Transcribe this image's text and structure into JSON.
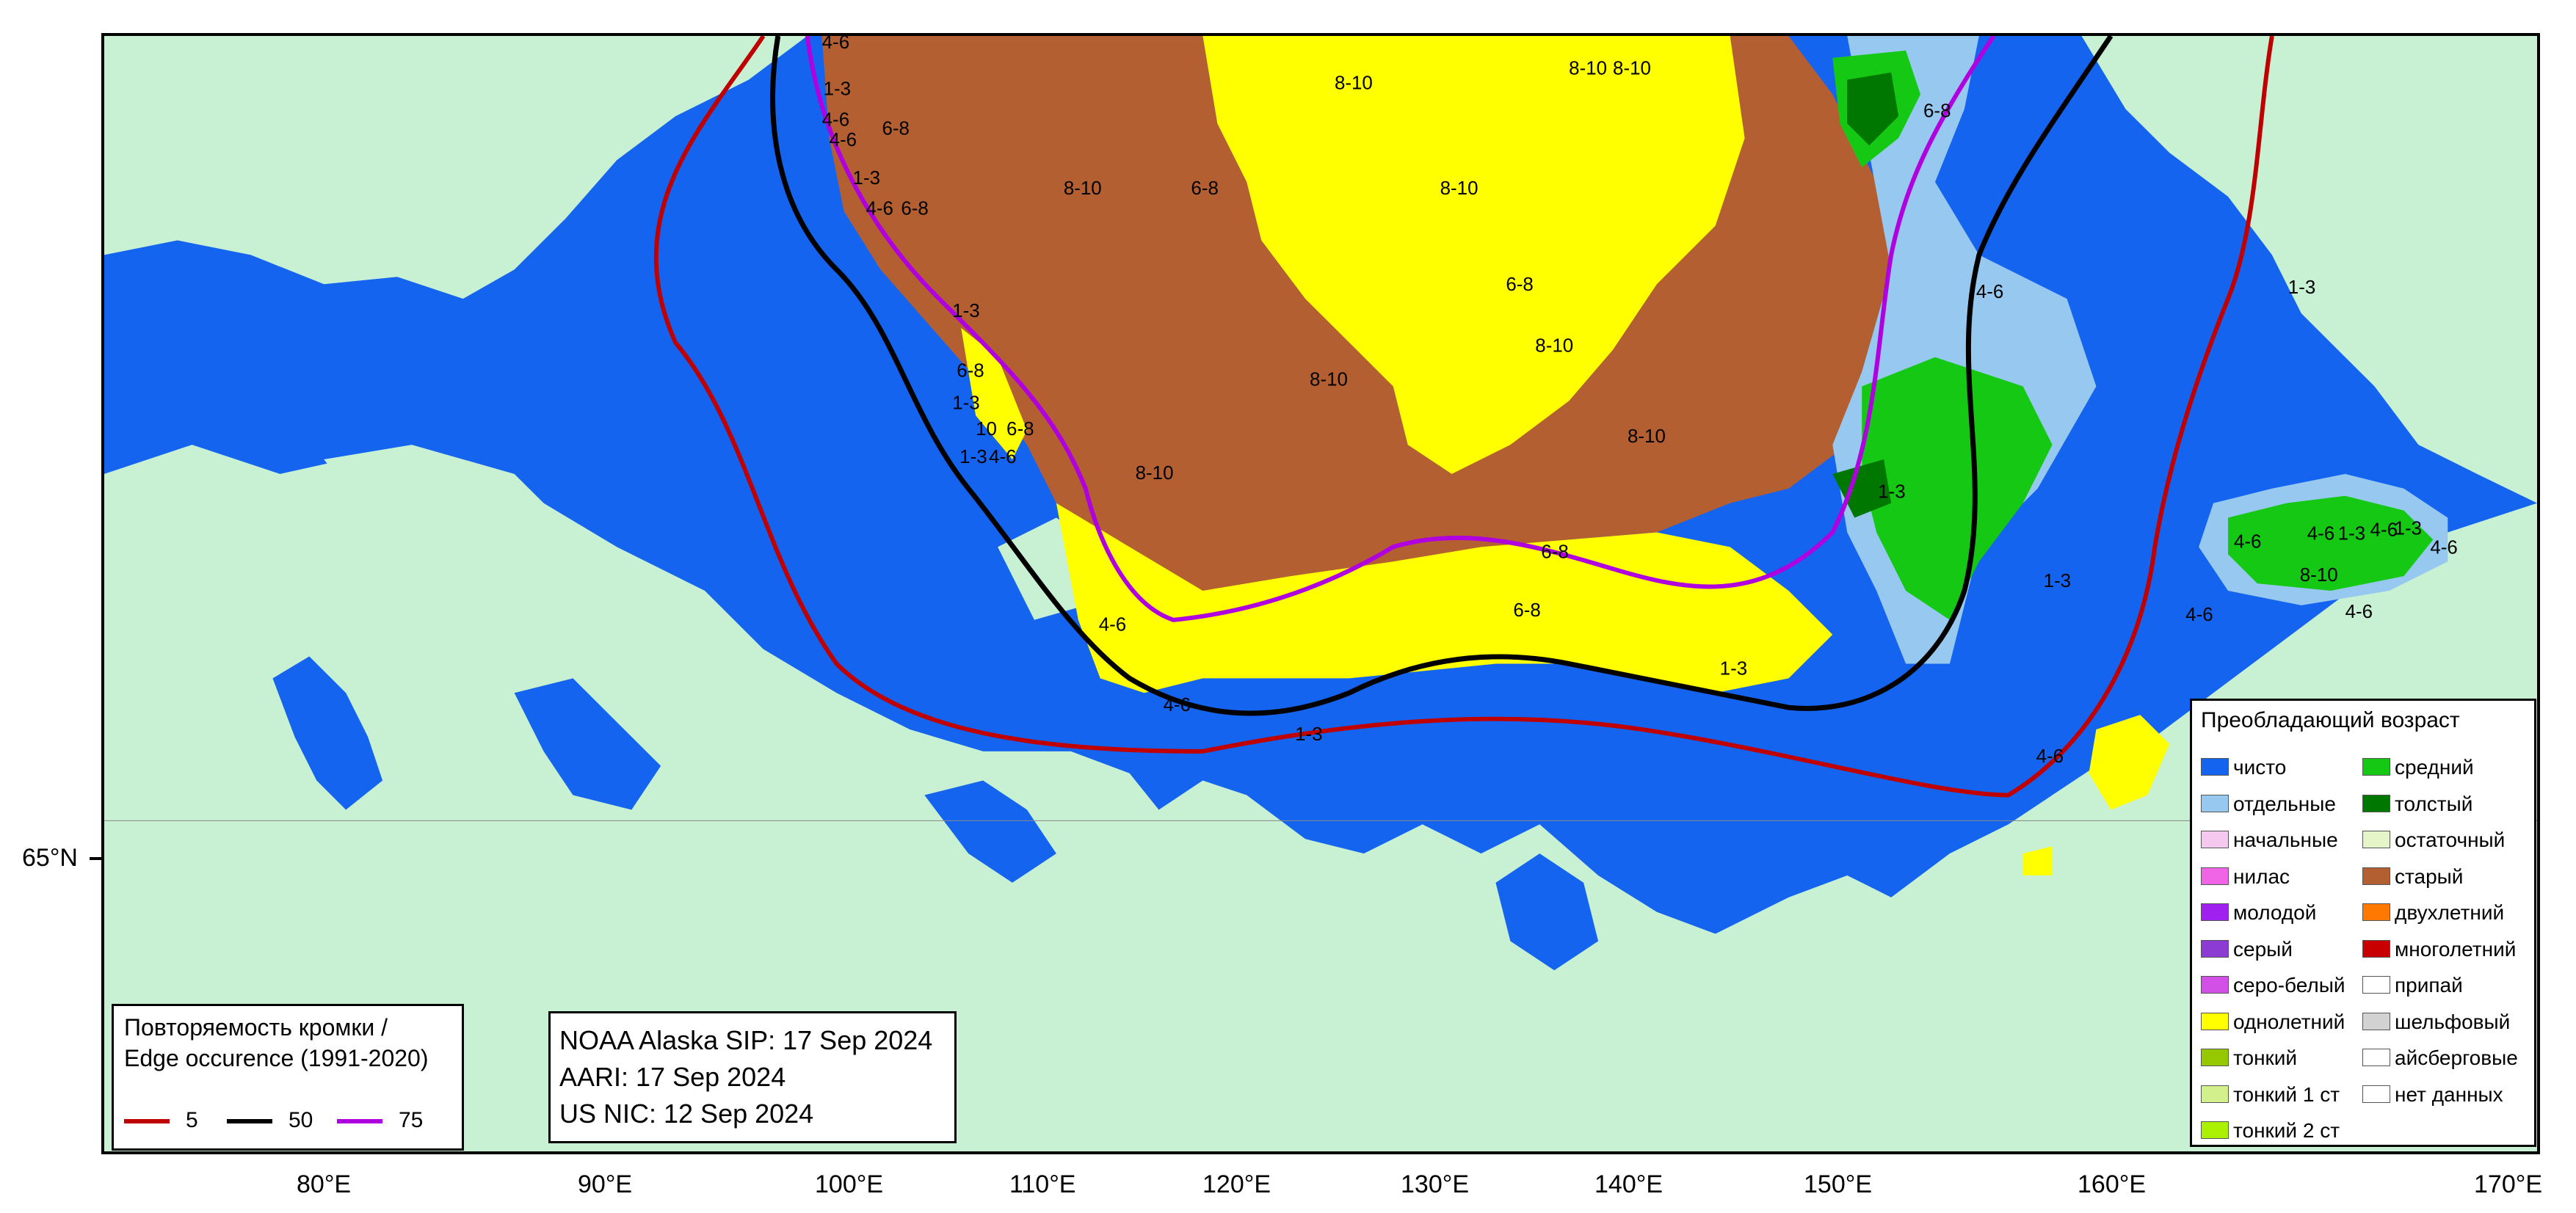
{
  "edge_legend": {
    "title": "Повторяемость кромки /",
    "subtitle": "Edge occurence (1991-2020)",
    "items": [
      {
        "label": "5",
        "color": "#c00000"
      },
      {
        "label": "50",
        "color": "#000000"
      },
      {
        "label": "75",
        "color": "#b000e0"
      }
    ]
  },
  "sources": {
    "line1": "NOAA Alaska SIP: 17 Sep 2024",
    "line2": "AARI: 17 Sep 2024",
    "line3": "US NIC: 12 Sep 2024"
  },
  "age_legend": {
    "title": "Преобладающий возраст",
    "left": [
      {
        "label": "чисто",
        "color": "#1464f0"
      },
      {
        "label": "отдельные",
        "color": "#96c8f0"
      },
      {
        "label": "начальные",
        "color": "#f5c8f0"
      },
      {
        "label": "нилас",
        "color": "#f064e6"
      },
      {
        "label": "молодой",
        "color": "#a020f0"
      },
      {
        "label": "серый",
        "color": "#8c3cd2"
      },
      {
        "label": "серо-белый",
        "color": "#d250e6"
      },
      {
        "label": "однолетний",
        "color": "#ffff00"
      },
      {
        "label": "тонкий",
        "color": "#96c800"
      },
      {
        "label": "тонкий 1 ст",
        "color": "#d2f08c"
      },
      {
        "label": "тонкий 2 ст",
        "color": "#aaf000"
      }
    ],
    "right": [
      {
        "label": "средний",
        "color": "#14c814"
      },
      {
        "label": "толстый",
        "color": "#007800"
      },
      {
        "label": "остаточный",
        "color": "#e6f5c8"
      },
      {
        "label": "старый",
        "color": "#b45f32"
      },
      {
        "label": "двухлетний",
        "color": "#ff7800"
      },
      {
        "label": "многолетний",
        "color": "#c80000"
      },
      {
        "label": "припай",
        "color": "#ffffff"
      },
      {
        "label": "шельфовый",
        "color": "#d2d2d2"
      },
      {
        "label": "айсберговые",
        "color": "#ffffff"
      },
      {
        "label": "нет данных",
        "color": "#ffffff"
      }
    ]
  },
  "axis": {
    "lon_ticks": [
      "80°E",
      "90°E",
      "100°E",
      "110°E",
      "120°E",
      "130°E",
      "140°E",
      "150°E",
      "160°E",
      "170°E"
    ],
    "lat_ticks": [
      "65°N"
    ]
  },
  "ice_labels": [
    "4-6",
    "1-3",
    "4-6",
    "4-6",
    "1-3",
    "6-8",
    "4-6",
    "6-8",
    "8-10",
    "6-8",
    "8-10",
    "8-10",
    "8-10",
    "8-10",
    "6-8",
    "1-3",
    "6-8",
    "8-10",
    "8-10",
    "8-10",
    "1-3",
    "10",
    "6-8",
    "1-3",
    "4-6",
    "8-10",
    "6-8",
    "4-6",
    "6-8",
    "1-3",
    "4-6",
    "1-3",
    "6-8",
    "4-6",
    "1-3",
    "1-3",
    "4-6",
    "1-3",
    "4-6",
    "1-3",
    "4-6",
    "1-3",
    "8-10",
    "4-6",
    "4-6",
    "4-6",
    "4-6"
  ],
  "colors": {
    "land": "#c8f0d2",
    "open_water": "#1464f0",
    "old_ice": "#b45f32",
    "first_year": "#ffff00",
    "medium": "#14c814",
    "thick": "#007800",
    "bergy": "#96c8f0"
  }
}
